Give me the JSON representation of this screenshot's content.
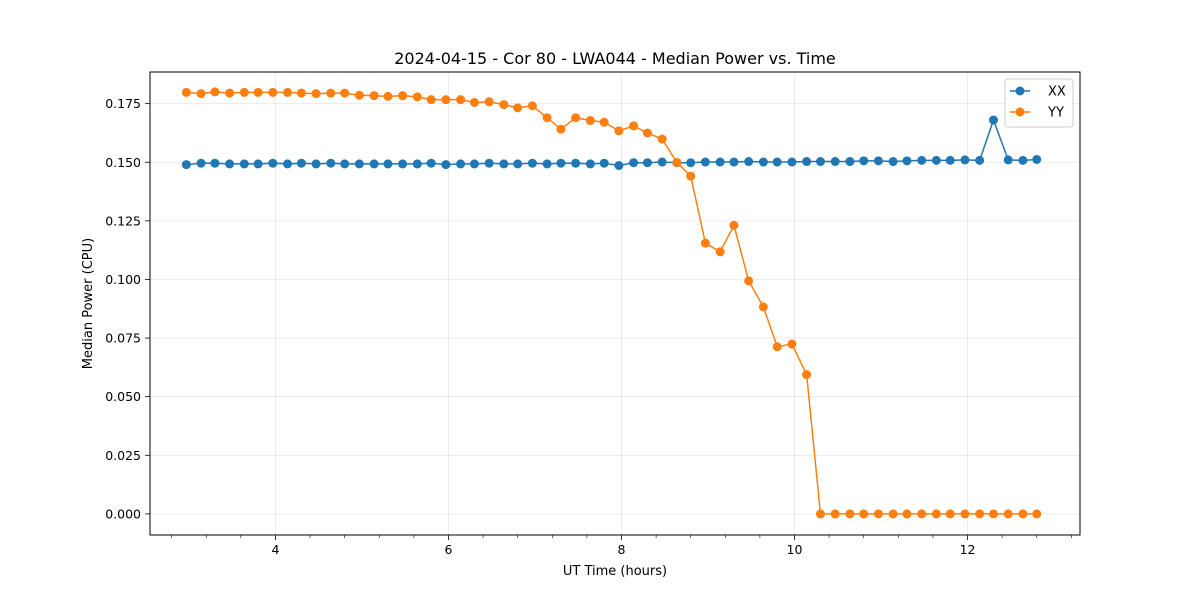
{
  "chart_data": {
    "type": "line",
    "title": "2024-04-15 - Cor 80 - LWA044 - Median Power vs. Time",
    "xlabel": "UT Time (hours)",
    "ylabel": "Median Power (CPU)",
    "xlim": [
      2.55,
      13.3
    ],
    "ylim": [
      -0.009,
      0.1885
    ],
    "x_ticks": [
      4,
      6,
      8,
      10,
      12
    ],
    "x_tick_labels": [
      "4",
      "6",
      "8",
      "10",
      "12"
    ],
    "x_minor_step": 0.4,
    "y_ticks": [
      0.0,
      0.025,
      0.05,
      0.075,
      0.1,
      0.125,
      0.15,
      0.175
    ],
    "y_tick_labels": [
      "0.000",
      "0.025",
      "0.050",
      "0.075",
      "0.100",
      "0.125",
      "0.150",
      "0.175"
    ],
    "grid": true,
    "legend_position": "top-right",
    "series": [
      {
        "name": "XX",
        "color": "#1f77b4",
        "x": [
          2.97,
          3.14,
          3.3,
          3.47,
          3.64,
          3.8,
          3.97,
          4.14,
          4.3,
          4.47,
          4.64,
          4.8,
          4.97,
          5.14,
          5.3,
          5.47,
          5.64,
          5.8,
          5.97,
          6.14,
          6.3,
          6.47,
          6.64,
          6.8,
          6.97,
          7.14,
          7.3,
          7.47,
          7.64,
          7.8,
          7.97,
          8.14,
          8.3,
          8.47,
          8.64,
          8.8,
          8.97,
          9.14,
          9.3,
          9.47,
          9.64,
          9.8,
          9.97,
          10.14,
          10.3,
          10.47,
          10.64,
          10.8,
          10.97,
          11.14,
          11.3,
          11.47,
          11.64,
          11.8,
          11.97,
          12.14,
          12.3,
          12.47,
          12.64,
          12.8
        ],
        "y": [
          0.149,
          0.1496,
          0.1496,
          0.1493,
          0.1493,
          0.1493,
          0.1496,
          0.1493,
          0.1496,
          0.1493,
          0.1496,
          0.1493,
          0.1493,
          0.1493,
          0.1493,
          0.1493,
          0.1493,
          0.1496,
          0.149,
          0.1493,
          0.1493,
          0.1496,
          0.1493,
          0.1493,
          0.1496,
          0.1493,
          0.1496,
          0.1496,
          0.1493,
          0.1496,
          0.1486,
          0.1498,
          0.1498,
          0.1501,
          0.1498,
          0.1498,
          0.1501,
          0.1501,
          0.1501,
          0.1503,
          0.1501,
          0.1501,
          0.1501,
          0.1503,
          0.1503,
          0.1503,
          0.1503,
          0.1506,
          0.1506,
          0.1503,
          0.1506,
          0.1508,
          0.1508,
          0.1508,
          0.151,
          0.1508,
          0.168,
          0.151,
          0.1508,
          0.1512
        ]
      },
      {
        "name": "YY",
        "color": "#ff7f0e",
        "x": [
          2.97,
          3.14,
          3.3,
          3.47,
          3.64,
          3.8,
          3.97,
          4.14,
          4.3,
          4.47,
          4.64,
          4.8,
          4.97,
          5.14,
          5.3,
          5.47,
          5.64,
          5.8,
          5.97,
          6.14,
          6.3,
          6.47,
          6.64,
          6.8,
          6.97,
          7.14,
          7.3,
          7.47,
          7.64,
          7.8,
          7.97,
          8.14,
          8.3,
          8.47,
          8.64,
          8.8,
          8.97,
          9.14,
          9.3,
          9.47,
          9.64,
          9.8,
          9.97,
          10.14,
          10.3,
          10.47,
          10.64,
          10.8,
          10.97,
          11.14,
          11.3,
          11.47,
          11.64,
          11.8,
          11.97,
          12.14,
          12.3,
          12.47,
          12.64,
          12.8
        ],
        "y": [
          0.1798,
          0.1793,
          0.18,
          0.1795,
          0.1798,
          0.1798,
          0.1798,
          0.1798,
          0.1795,
          0.1793,
          0.1795,
          0.1795,
          0.1786,
          0.1784,
          0.1781,
          0.1784,
          0.1779,
          0.1767,
          0.1767,
          0.1767,
          0.1755,
          0.1758,
          0.1746,
          0.1732,
          0.1741,
          0.169,
          0.1641,
          0.169,
          0.1678,
          0.1671,
          0.1634,
          0.1655,
          0.1625,
          0.1599,
          0.1499,
          0.1441,
          0.1155,
          0.1118,
          0.1231,
          0.0994,
          0.0883,
          0.0713,
          0.0725,
          0.0594,
          0.0,
          0.0,
          0.0,
          0.0,
          0.0,
          0.0,
          0.0,
          0.0,
          0.0,
          0.0,
          0.0,
          0.0,
          0.0,
          0.0,
          0.0,
          0.0
        ]
      }
    ]
  }
}
